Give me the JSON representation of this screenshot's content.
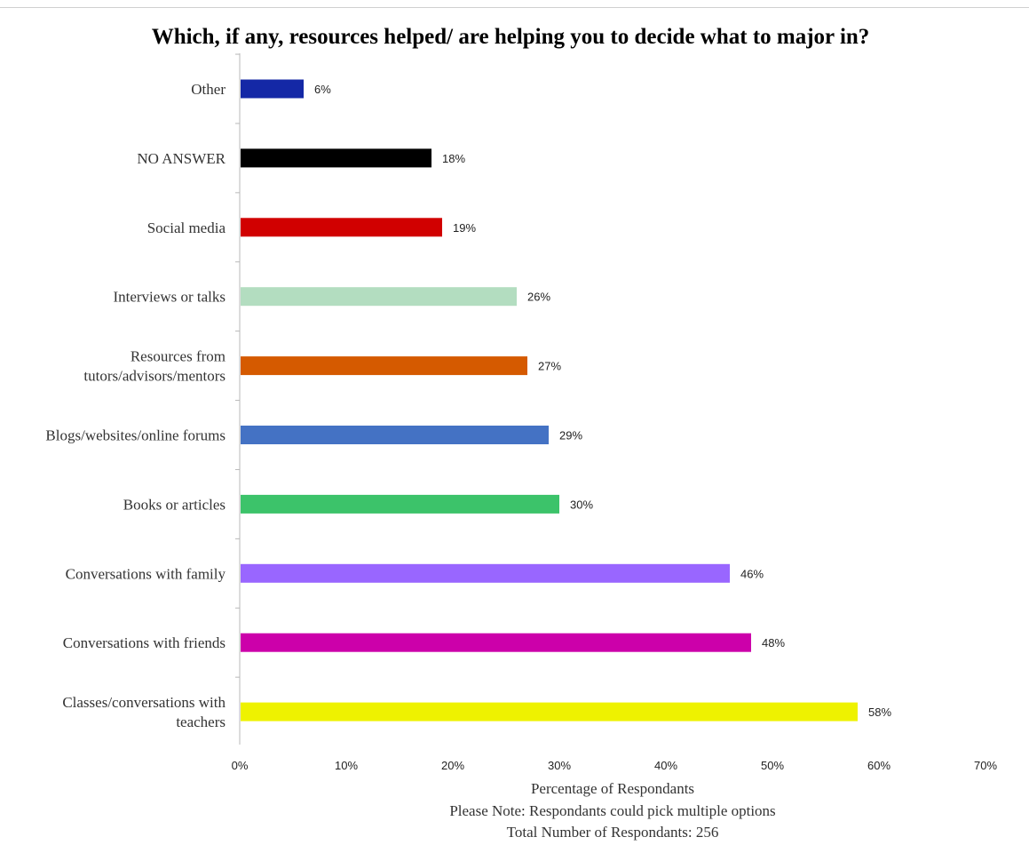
{
  "chart_data": {
    "type": "bar",
    "orientation": "horizontal",
    "title": "Which, if any, resources helped/ are helping you to decide what to major in?",
    "xlabel": "Percentage of Respondants",
    "notes": [
      "Please Note: Respondants could pick multiple options",
      "Total Number of Respondants: 256"
    ],
    "xlim": [
      0,
      70
    ],
    "ticks": [
      0,
      10,
      20,
      30,
      40,
      50,
      60,
      70
    ],
    "tick_labels": [
      "0%",
      "10%",
      "20%",
      "30%",
      "40%",
      "50%",
      "60%",
      "70%"
    ],
    "grid": false,
    "categories": [
      [
        "Other"
      ],
      [
        "NO ANSWER"
      ],
      [
        "Social media"
      ],
      [
        "Interviews or talks"
      ],
      [
        "Resources from",
        "tutors/advisors/mentors"
      ],
      [
        "Blogs/websites/online forums"
      ],
      [
        "Books or articles"
      ],
      [
        "Conversations with family"
      ],
      [
        "Conversations with friends"
      ],
      [
        "Classes/conversations with",
        "teachers"
      ]
    ],
    "values": [
      6,
      18,
      19,
      26,
      27,
      29,
      30,
      46,
      48,
      58
    ],
    "value_labels": [
      "6%",
      "18%",
      "19%",
      "26%",
      "27%",
      "29%",
      "30%",
      "46%",
      "48%",
      "58%"
    ],
    "colors": [
      "#1428A6",
      "#000000",
      "#D10000",
      "#B3DDC0",
      "#D55A00",
      "#4472C4",
      "#3CC36A",
      "#9966FF",
      "#CC00AA",
      "#EEF200"
    ],
    "axis_color": "#b8b8b8"
  }
}
